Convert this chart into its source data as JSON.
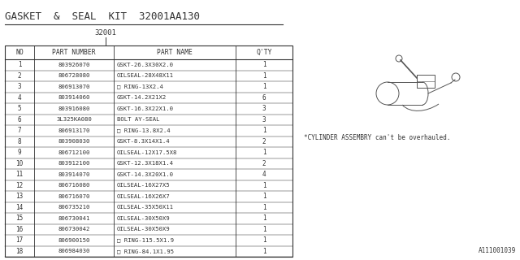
{
  "title": "GASKET  &  SEAL  KIT  32001AA130",
  "subtitle": "32001",
  "bg_color": "#ffffff",
  "border_color": "#333333",
  "font_color": "#333333",
  "sketch_color": "#555555",
  "note": "*CYLINDER ASSEMBRY can't be overhauled.",
  "image_ref": "A111001039",
  "columns": [
    "NO",
    "PART NUMBER",
    "PART NAME",
    "Q'TY"
  ],
  "rows": [
    [
      "1",
      "803926070",
      "GSKT-26.3X30X2.0",
      "1"
    ],
    [
      "2",
      "806728080",
      "OILSEAL-28X48X11",
      "1"
    ],
    [
      "3",
      "806913070",
      "□ RING-13X2.4",
      "1"
    ],
    [
      "4",
      "803914060",
      "GSKT-14.2X21X2",
      "6"
    ],
    [
      "5",
      "803916080",
      "GSKT-16.3X22X1.0",
      "3"
    ],
    [
      "6",
      "3L325KA080",
      "BOLT AY-SEAL",
      "3"
    ],
    [
      "7",
      "806913170",
      "□ RING-13.8X2.4",
      "1"
    ],
    [
      "8",
      "803908030",
      "GSKT-8.3X14X1.4",
      "2"
    ],
    [
      "9",
      "806712100",
      "OILSEAL-12X17.5X8",
      "1"
    ],
    [
      "10",
      "803912100",
      "GSKT-12.3X18X1.4",
      "2"
    ],
    [
      "11",
      "803914070",
      "GSKT-14.3X20X1.0",
      "4"
    ],
    [
      "12",
      "806716080",
      "OILSEAL-16X27X5",
      "1"
    ],
    [
      "13",
      "806716070",
      "OILSEAL-16X26X7",
      "1"
    ],
    [
      "14",
      "806735210",
      "OILSEAL-35X50X11",
      "1"
    ],
    [
      "15",
      "806730041",
      "OILSEAL-30X50X9",
      "1"
    ],
    [
      "16",
      "806730042",
      "OILSEAL-30X50X9",
      "1"
    ],
    [
      "17",
      "806900150",
      "□ RING-115.5X1.9",
      "1"
    ],
    [
      "18",
      "806984030",
      "□ RING-84.1X1.95",
      "1"
    ]
  ]
}
